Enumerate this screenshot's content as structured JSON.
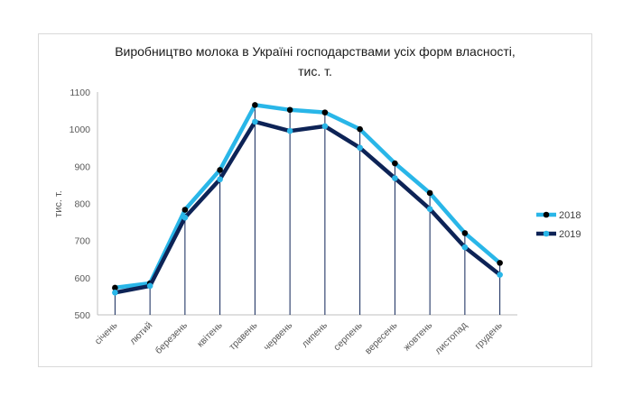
{
  "chart_data": {
    "type": "line",
    "title_line1": "Виробництво молока в Україні господарствами усіх форм власності,",
    "title_line2": "тис. т.",
    "xlabel": "",
    "ylabel": "тис. т.",
    "ylim": [
      500,
      1100
    ],
    "yticks": [
      500,
      600,
      700,
      800,
      900,
      1000,
      1100
    ],
    "grid": false,
    "legend_position": "right",
    "categories": [
      "січень",
      "лютий",
      "березень",
      "квітень",
      "травень",
      "червень",
      "липень",
      "серпень",
      "вересень",
      "жовтень",
      "листопад",
      "грудень"
    ],
    "series": [
      {
        "name": "2018",
        "color": "#29b6e8",
        "marker_color": "#000000",
        "values": [
          573,
          585,
          783,
          890,
          1065,
          1052,
          1045,
          1000,
          908,
          828,
          720,
          640
        ]
      },
      {
        "name": "2019",
        "color": "#0d2356",
        "marker_color": "#29b6e8",
        "values": [
          560,
          578,
          762,
          865,
          1020,
          995,
          1008,
          950,
          868,
          785,
          682,
          608
        ]
      }
    ],
    "drop_line_color": "#0d2356"
  }
}
